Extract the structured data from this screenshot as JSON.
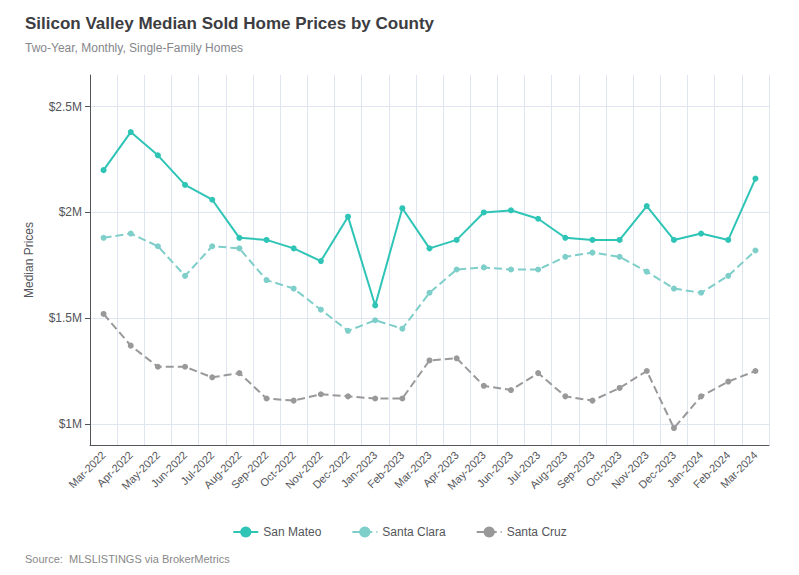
{
  "chart_data": {
    "type": "line",
    "title": "Silicon Valley Median Sold Home Prices by County",
    "subtitle": "Two-Year, Monthly, Single-Family Homes",
    "source": "Source:  MLSLISTINGS via BrokerMetrics",
    "ylabel": "Median Prices",
    "categories": [
      "Mar-2022",
      "Apr-2022",
      "May-2022",
      "Jun-2022",
      "Jul-2022",
      "Aug-2022",
      "Sep-2022",
      "Oct-2022",
      "Nov-2022",
      "Dec-2022",
      "Jan-2023",
      "Feb-2023",
      "Mar-2023",
      "Apr-2023",
      "May-2023",
      "Jun-2023",
      "Jul-2023",
      "Aug-2023",
      "Sep-2023",
      "Oct-2023",
      "Nov-2023",
      "Dec-2023",
      "Jan-2024",
      "Feb-2024",
      "Mar-2024"
    ],
    "series": [
      {
        "name": "San Mateo",
        "color": "#2ec4b6",
        "line_style": "solid",
        "marker": "circle",
        "values": [
          2200000,
          2380000,
          2270000,
          2130000,
          2060000,
          1880000,
          1870000,
          1830000,
          1770000,
          1980000,
          1560000,
          2020000,
          1830000,
          1870000,
          2000000,
          2010000,
          1970000,
          1880000,
          1870000,
          1870000,
          2030000,
          1870000,
          1900000,
          1870000,
          2160000
        ]
      },
      {
        "name": "Santa Clara",
        "color": "#7ececa",
        "line_style": "dashed",
        "marker": "circle",
        "values": [
          1880000,
          1900000,
          1840000,
          1700000,
          1840000,
          1830000,
          1680000,
          1640000,
          1540000,
          1440000,
          1490000,
          1450000,
          1620000,
          1730000,
          1740000,
          1730000,
          1730000,
          1790000,
          1810000,
          1790000,
          1720000,
          1640000,
          1620000,
          1700000,
          1820000
        ]
      },
      {
        "name": "Santa Cruz",
        "color": "#999999",
        "line_style": "dashed",
        "marker": "circle",
        "values": [
          1520000,
          1370000,
          1270000,
          1270000,
          1220000,
          1240000,
          1120000,
          1110000,
          1140000,
          1130000,
          1120000,
          1120000,
          1300000,
          1310000,
          1180000,
          1160000,
          1240000,
          1130000,
          1110000,
          1170000,
          1250000,
          980000,
          1130000,
          1200000,
          1250000
        ]
      }
    ],
    "ylim": [
      900000,
      2650000
    ],
    "yticks": [
      {
        "value": 1000000,
        "label": "$1M"
      },
      {
        "value": 1500000,
        "label": "$1.5M"
      },
      {
        "value": 2000000,
        "label": "$2M"
      },
      {
        "value": 2500000,
        "label": "$2.5M"
      }
    ],
    "grid": true,
    "legend": "bottom"
  }
}
